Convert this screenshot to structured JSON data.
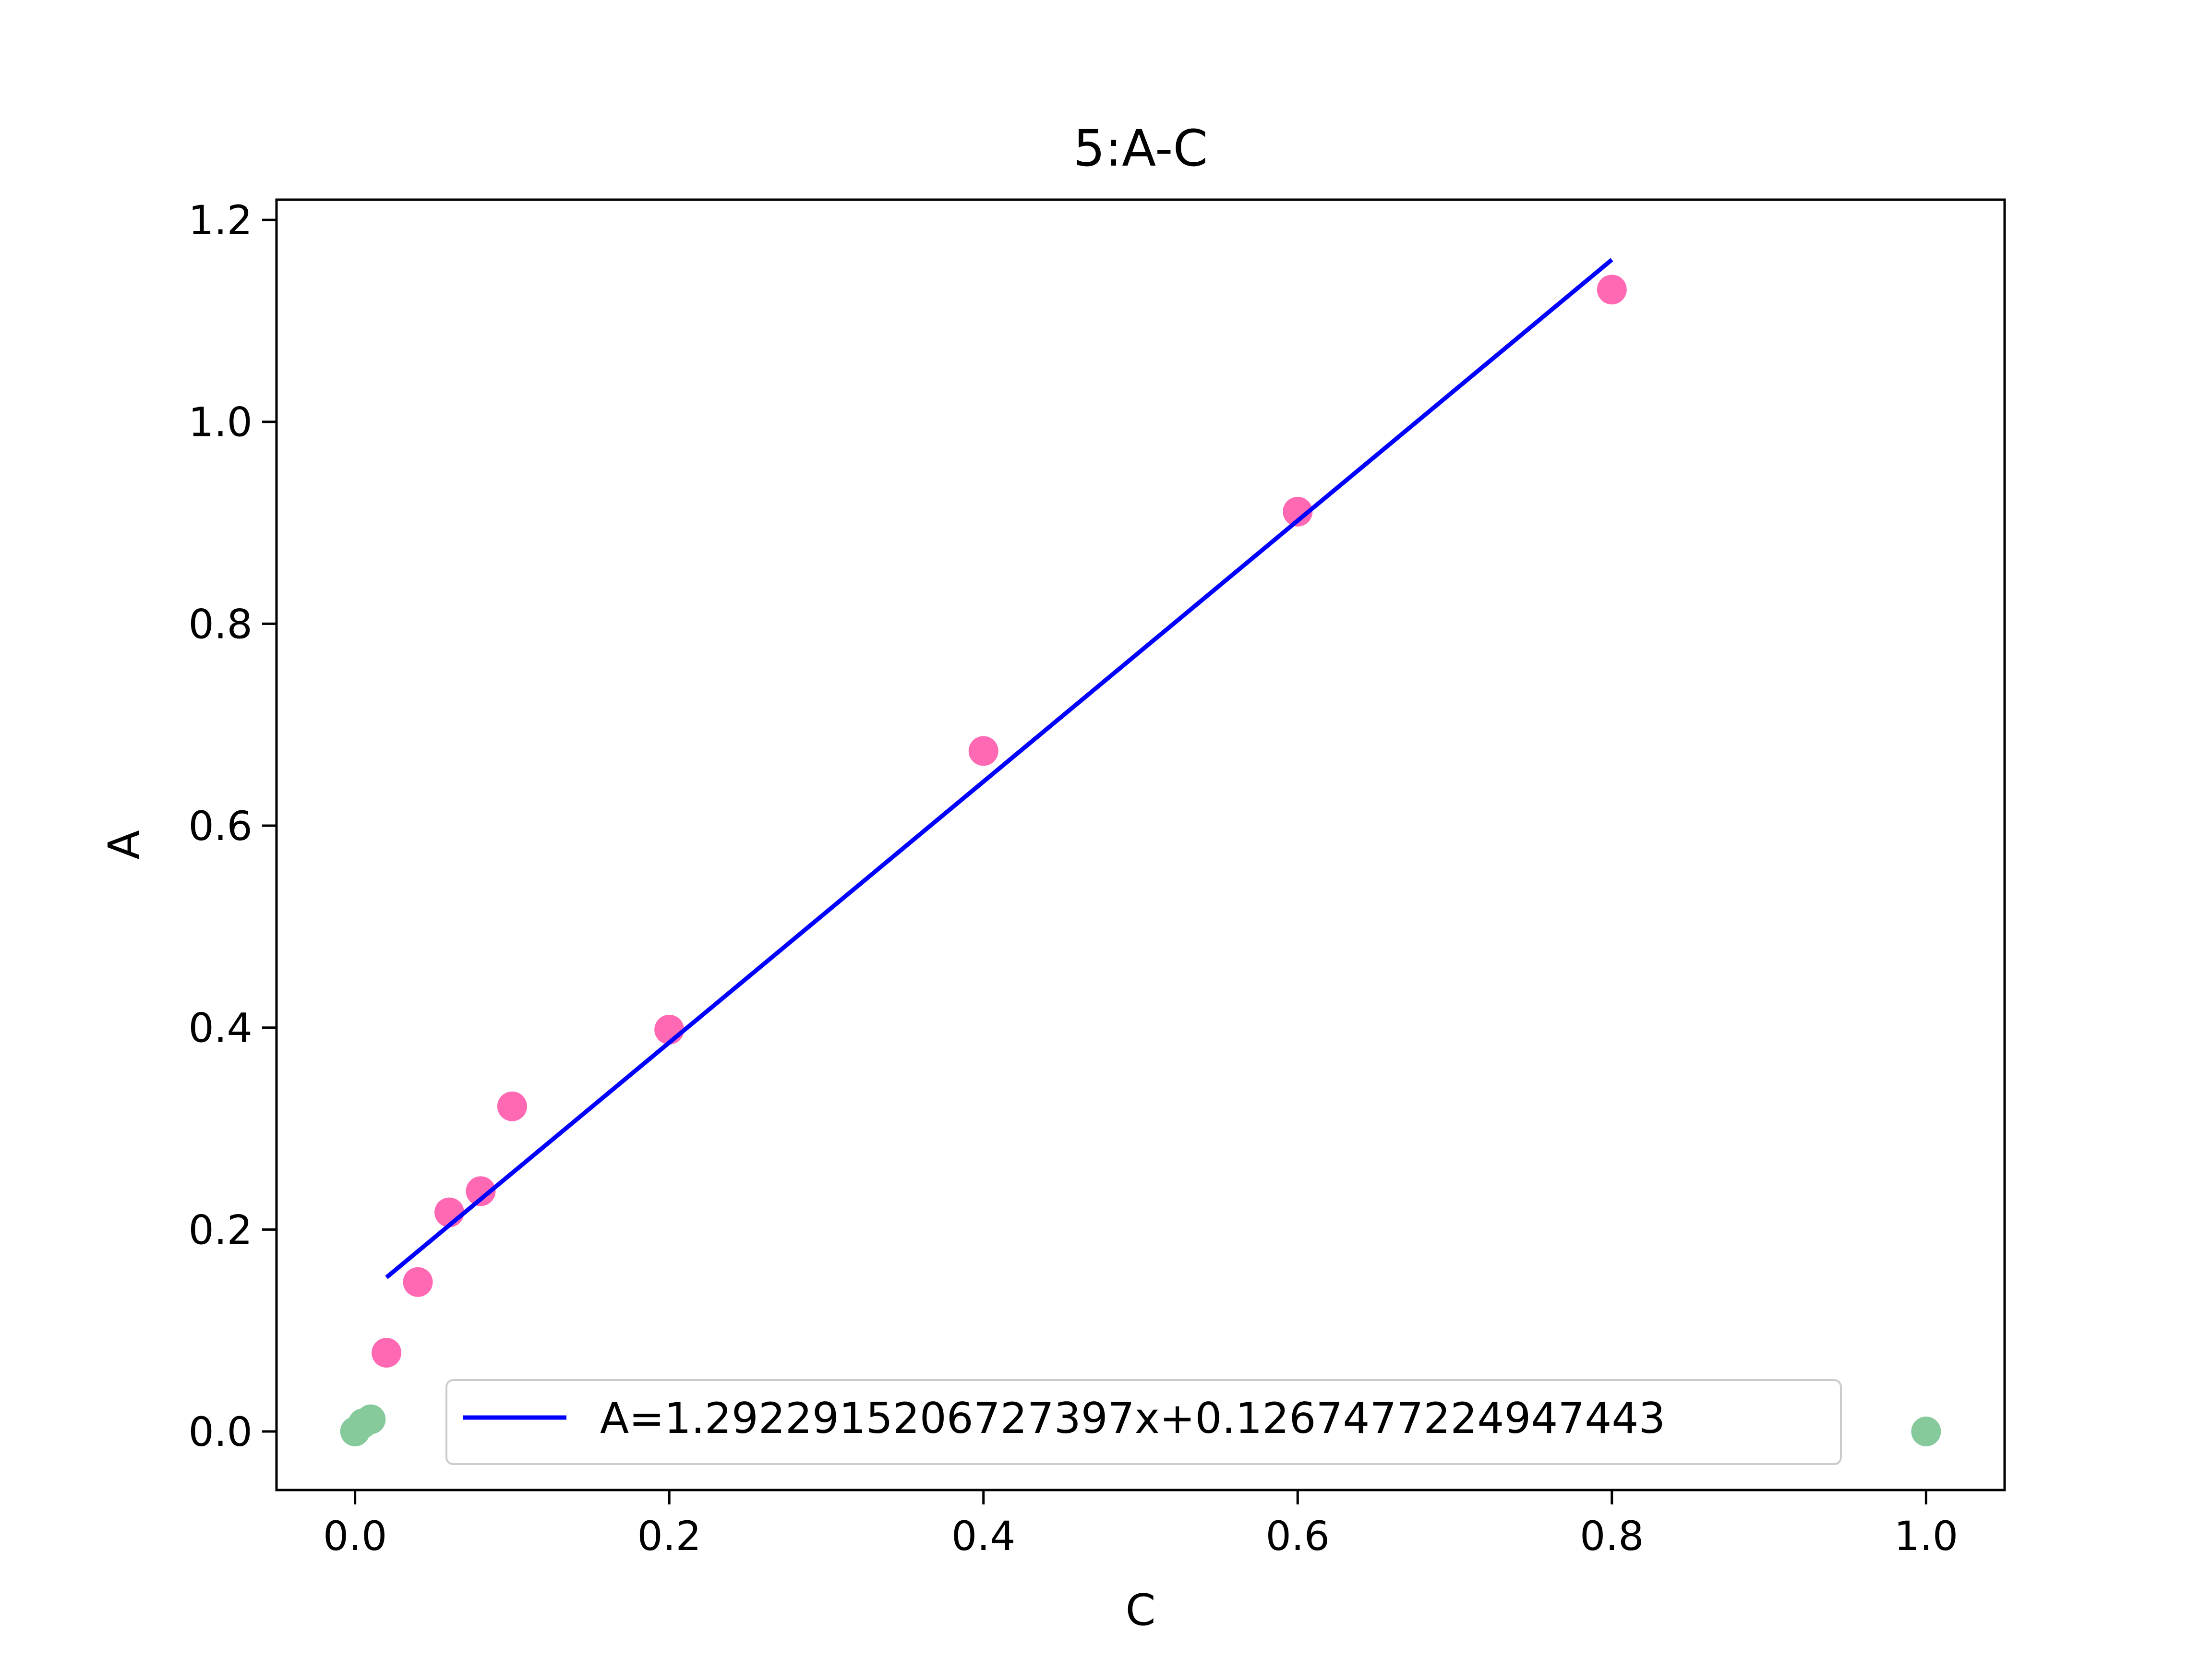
{
  "chart_data": {
    "type": "scatter",
    "title": "5:A-C",
    "xlabel": "C",
    "ylabel": "A",
    "xlim": [
      -0.05,
      1.05
    ],
    "ylim": [
      -0.058,
      1.22
    ],
    "xticks": [
      0.0,
      0.2,
      0.4,
      0.6,
      0.8,
      1.0
    ],
    "xtick_labels": [
      "0.0",
      "0.2",
      "0.4",
      "0.6",
      "0.8",
      "1.0"
    ],
    "yticks": [
      0.0,
      0.2,
      0.4,
      0.6,
      0.8,
      1.0,
      1.2
    ],
    "ytick_labels": [
      "0.0",
      "0.2",
      "0.4",
      "0.6",
      "0.8",
      "1.0",
      "1.2"
    ],
    "grid": false,
    "legend": {
      "placement": "lower-right",
      "entries": [
        "A=1.2922915206727397x+0.1267477224947443"
      ]
    },
    "series": [
      {
        "kind": "scatter",
        "color": "#ff69b4",
        "x": [
          0.02,
          0.04,
          0.06,
          0.08,
          0.1,
          0.2,
          0.4,
          0.6,
          0.8
        ],
        "y": [
          0.078,
          0.148,
          0.217,
          0.238,
          0.322,
          0.398,
          0.674,
          0.911,
          1.131
        ]
      },
      {
        "kind": "scatter",
        "color": "#86c99b",
        "x": [
          0.0,
          0.005,
          0.01,
          1.0
        ],
        "y": [
          0.0,
          0.008,
          0.012,
          0.0
        ]
      },
      {
        "kind": "line",
        "name": "A=1.2922915206727397x+0.1267477224947443",
        "color": "#0000ff",
        "slope": 1.2922915206727397,
        "intercept": 0.1267477224947443,
        "x": [
          0.02,
          0.8
        ]
      }
    ]
  }
}
